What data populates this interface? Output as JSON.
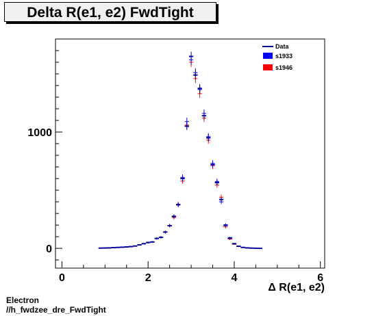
{
  "title": "Delta R(e1, e2) FwdTight",
  "footer": {
    "line1": "Electron",
    "line2": "//h_fwdzee_dre_FwdTight"
  },
  "colors": {
    "data": "#000099",
    "s1933": "#0000ff",
    "s1946": "#ff0000",
    "frame": "#000000"
  },
  "chart_data": {
    "type": "scatter",
    "title": "Delta R(e1, e2) FwdTight",
    "xlabel": "Δ R(e1, e2)",
    "ylabel": "",
    "xlim": [
      -0.15,
      6.1
    ],
    "ylim": [
      -170,
      1800
    ],
    "xticks": [
      0,
      2,
      4,
      6
    ],
    "xtick_labels": [
      "0",
      "2",
      "4",
      "6"
    ],
    "yticks": [
      0,
      1000
    ],
    "ytick_labels": [
      "0",
      "1000"
    ],
    "legend": {
      "placement": "top-right",
      "entries": [
        {
          "name": "Data",
          "style": "line"
        },
        {
          "name": "s1933",
          "style": "box"
        },
        {
          "name": "s1946",
          "style": "box"
        }
      ]
    },
    "bin_width": 0.1,
    "x": [
      0.9,
      1.0,
      1.1,
      1.2,
      1.3,
      1.4,
      1.5,
      1.6,
      1.7,
      1.8,
      1.9,
      2.0,
      2.1,
      2.2,
      2.3,
      2.4,
      2.5,
      2.6,
      2.7,
      2.8,
      2.9,
      3.0,
      3.1,
      3.2,
      3.3,
      3.4,
      3.5,
      3.6,
      3.7,
      3.8,
      3.9,
      4.0,
      4.1,
      4.2,
      4.3,
      4.4,
      4.5,
      4.6
    ],
    "series": [
      {
        "name": "Data",
        "values": [
          2,
          3,
          4,
          6,
          8,
          10,
          12,
          15,
          20,
          30,
          40,
          50,
          55,
          85,
          95,
          140,
          195,
          275,
          375,
          600,
          1050,
          1650,
          1490,
          1375,
          1140,
          950,
          720,
          565,
          420,
          200,
          90,
          40,
          18,
          8,
          4,
          2,
          1,
          0
        ]
      },
      {
        "name": "s1933",
        "values": [
          2,
          3,
          4,
          6,
          8,
          10,
          12,
          15,
          20,
          30,
          40,
          50,
          55,
          85,
          95,
          140,
          195,
          275,
          375,
          610,
          1090,
          1620,
          1510,
          1365,
          1160,
          960,
          730,
          575,
          400,
          195,
          85,
          40,
          18,
          8,
          4,
          2,
          1,
          0
        ]
      },
      {
        "name": "s1946",
        "values": [
          2,
          3,
          4,
          6,
          8,
          10,
          12,
          15,
          20,
          30,
          40,
          50,
          55,
          85,
          95,
          140,
          195,
          265,
          380,
          580,
          1060,
          1600,
          1460,
          1330,
          1120,
          930,
          710,
          545,
          440,
          185,
          80,
          35,
          16,
          7,
          3,
          2,
          1,
          0
        ]
      }
    ]
  }
}
